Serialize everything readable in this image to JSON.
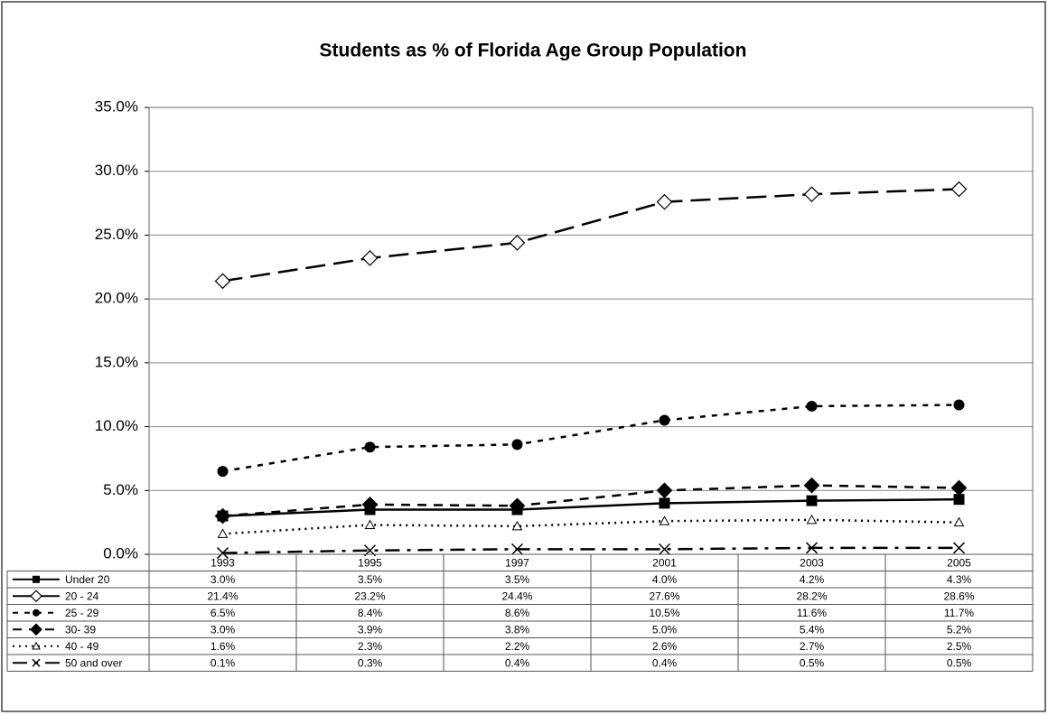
{
  "chart_data": {
    "type": "line",
    "title": "Students as % of Florida Age Group Population",
    "categories": [
      "1993",
      "1995",
      "1997",
      "2001",
      "2003",
      "2005"
    ],
    "ylim": [
      0,
      35
    ],
    "yticks": [
      {
        "value": 0,
        "label": "0.0%"
      },
      {
        "value": 5,
        "label": "5.0%"
      },
      {
        "value": 10,
        "label": "10.0%"
      },
      {
        "value": 15,
        "label": "15.0%"
      },
      {
        "value": 20,
        "label": "20.0%"
      },
      {
        "value": 25,
        "label": "25.0%"
      },
      {
        "value": 30,
        "label": "30.0%"
      },
      {
        "value": 35,
        "label": "35.0%"
      }
    ],
    "grid": true,
    "series": [
      {
        "name": "Under 20",
        "color": "#000000",
        "marker": "square",
        "dash": "solid",
        "values": [
          3.0,
          3.5,
          3.5,
          4.0,
          4.2,
          4.3
        ],
        "value_labels": [
          "3.0%",
          "3.5%",
          "3.5%",
          "4.0%",
          "4.2%",
          "4.3%"
        ]
      },
      {
        "name": "20 - 24",
        "color": "#000000",
        "marker": "open-diamond",
        "dash": "long-dash",
        "values": [
          21.4,
          23.2,
          24.4,
          27.6,
          28.2,
          28.6
        ],
        "value_labels": [
          "21.4%",
          "23.2%",
          "24.4%",
          "27.6%",
          "28.2%",
          "28.6%"
        ]
      },
      {
        "name": "25 - 29",
        "color": "#000000",
        "marker": "circle",
        "dash": "short-dash",
        "values": [
          6.5,
          8.4,
          8.6,
          10.5,
          11.6,
          11.7
        ],
        "value_labels": [
          "6.5%",
          "8.4%",
          "8.6%",
          "10.5%",
          "11.6%",
          "11.7%"
        ]
      },
      {
        "name": "30- 39",
        "color": "#000000",
        "marker": "diamond",
        "dash": "dash",
        "values": [
          3.0,
          3.9,
          3.8,
          5.0,
          5.4,
          5.2
        ],
        "value_labels": [
          "3.0%",
          "3.9%",
          "3.8%",
          "5.0%",
          "5.4%",
          "5.2%"
        ]
      },
      {
        "name": "40 - 49",
        "color": "#000000",
        "marker": "open-triangle",
        "dash": "dotted",
        "values": [
          1.6,
          2.3,
          2.2,
          2.6,
          2.7,
          2.5
        ],
        "value_labels": [
          "1.6%",
          "2.3%",
          "2.2%",
          "2.6%",
          "2.7%",
          "2.5%"
        ]
      },
      {
        "name": "50 and over",
        "color": "#000000",
        "marker": "x",
        "dash": "dash-dot",
        "values": [
          0.1,
          0.3,
          0.4,
          0.4,
          0.5,
          0.5
        ],
        "value_labels": [
          "0.1%",
          "0.3%",
          "0.4%",
          "0.4%",
          "0.5%",
          "0.5%"
        ]
      }
    ]
  }
}
